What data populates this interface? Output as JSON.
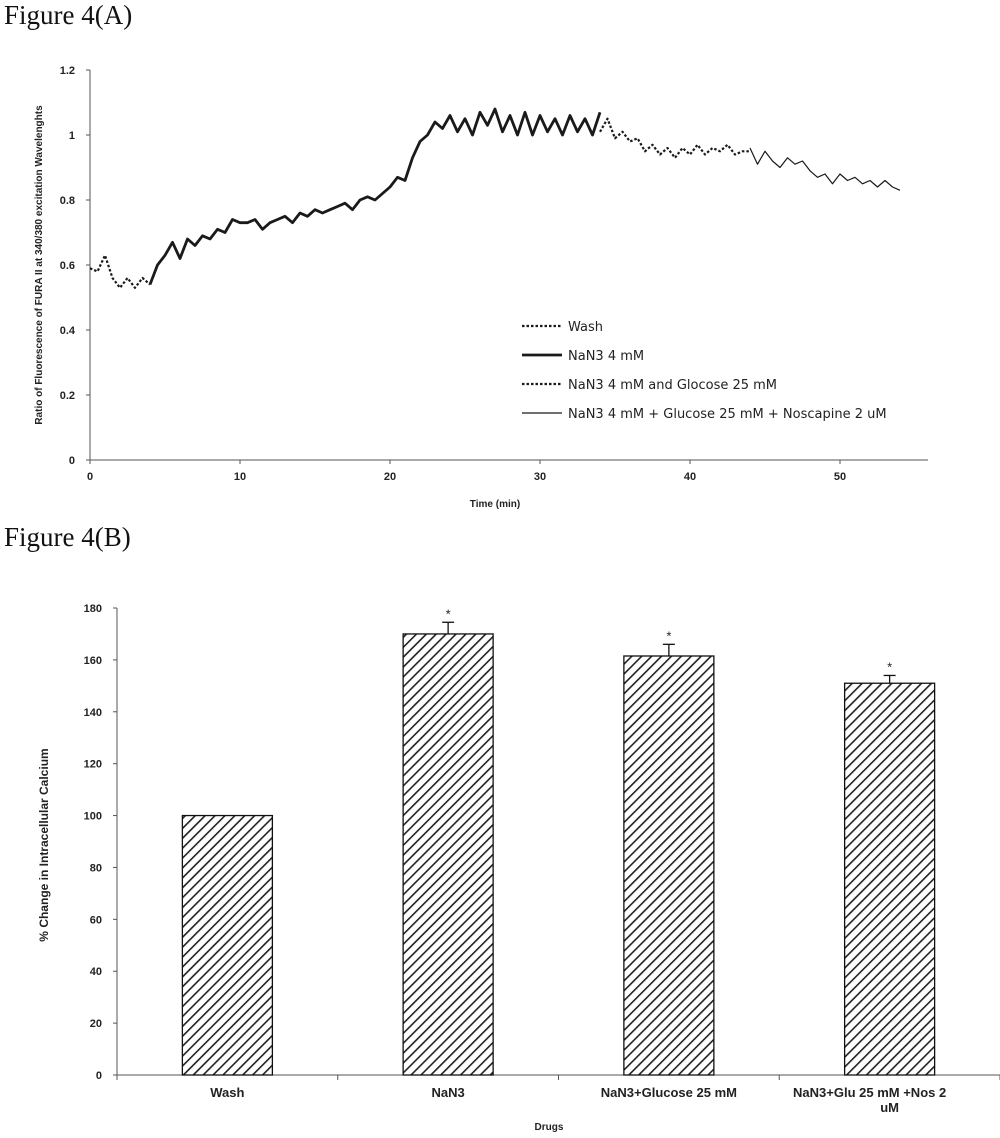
{
  "figures": {
    "a_label": "Figure 4(A)",
    "b_label": "Figure 4(B)"
  },
  "chart_data": [
    {
      "type": "line",
      "xlabel": "Time (min)",
      "ylabel": "Ratio of Fluorescence of FURA II at 340/380 excitation Wavelenghts",
      "xlim": [
        0,
        55
      ],
      "ylim": [
        0,
        1.2
      ],
      "xticks": [
        0,
        10,
        20,
        30,
        40,
        50
      ],
      "yticks": [
        0,
        0.2,
        0.4,
        0.6,
        0.8,
        1,
        1.2
      ],
      "legend_position": "lower-right",
      "grid": false,
      "series": [
        {
          "name": "Wash",
          "style": "dotted",
          "x": [
            0,
            0.5,
            1,
            1.5,
            2,
            2.5,
            3,
            3.5,
            4
          ],
          "y": [
            0.59,
            0.58,
            0.63,
            0.56,
            0.53,
            0.56,
            0.53,
            0.56,
            0.54
          ]
        },
        {
          "name": "NaN3 4 mM",
          "style": "thick",
          "x": [
            4,
            4.5,
            5,
            5.5,
            6,
            6.5,
            7,
            7.5,
            8,
            8.5,
            9,
            9.5,
            10,
            10.5,
            11,
            11.5,
            12,
            12.5,
            13,
            13.5,
            14,
            14.5,
            15,
            15.5,
            16,
            16.5,
            17,
            17.5,
            18,
            18.5,
            19,
            19.5,
            20,
            20.5,
            21,
            21.5,
            22,
            22.5,
            23,
            23.5,
            24,
            24.5,
            25,
            25.5,
            26,
            26.5,
            27,
            27.5,
            28,
            28.5,
            29,
            29.5,
            30,
            30.5,
            31,
            31.5,
            32,
            32.5,
            33,
            33.5,
            34
          ],
          "y": [
            0.54,
            0.6,
            0.63,
            0.67,
            0.62,
            0.68,
            0.66,
            0.69,
            0.68,
            0.71,
            0.7,
            0.74,
            0.73,
            0.73,
            0.74,
            0.71,
            0.73,
            0.74,
            0.75,
            0.73,
            0.76,
            0.75,
            0.77,
            0.76,
            0.77,
            0.78,
            0.79,
            0.77,
            0.8,
            0.81,
            0.8,
            0.82,
            0.84,
            0.87,
            0.86,
            0.93,
            0.98,
            1.0,
            1.04,
            1.02,
            1.06,
            1.01,
            1.05,
            1.0,
            1.07,
            1.03,
            1.08,
            1.01,
            1.06,
            1.0,
            1.07,
            1.0,
            1.06,
            1.01,
            1.05,
            1.0,
            1.06,
            1.01,
            1.05,
            1.0,
            1.07
          ]
        },
        {
          "name": "NaN3 4 mM and Glocose 25 mM",
          "style": "dotted",
          "x": [
            34,
            34.5,
            35,
            35.5,
            36,
            36.5,
            37,
            37.5,
            38,
            38.5,
            39,
            39.5,
            40,
            40.5,
            41,
            41.5,
            42,
            42.5,
            43,
            43.5,
            44
          ],
          "y": [
            1.01,
            1.05,
            0.99,
            1.01,
            0.98,
            0.99,
            0.95,
            0.97,
            0.94,
            0.96,
            0.93,
            0.96,
            0.94,
            0.97,
            0.94,
            0.96,
            0.95,
            0.97,
            0.94,
            0.95,
            0.95
          ]
        },
        {
          "name": "NaN3 4 mM + Glucose 25 mM +  Noscapine 2 uM",
          "style": "thin",
          "x": [
            44,
            44.5,
            45,
            45.5,
            46,
            46.5,
            47,
            47.5,
            48,
            48.5,
            49,
            49.5,
            50,
            50.5,
            51,
            51.5,
            52,
            52.5,
            53,
            53.5,
            54
          ],
          "y": [
            0.96,
            0.91,
            0.95,
            0.92,
            0.9,
            0.93,
            0.91,
            0.92,
            0.89,
            0.87,
            0.88,
            0.85,
            0.88,
            0.86,
            0.87,
            0.85,
            0.86,
            0.84,
            0.86,
            0.84,
            0.83
          ]
        }
      ]
    },
    {
      "type": "bar",
      "xlabel": "Drugs",
      "ylabel": "% Change in Intracellular Calcium",
      "ylim": [
        0,
        180
      ],
      "yticks": [
        0,
        20,
        40,
        60,
        80,
        100,
        120,
        140,
        160,
        180
      ],
      "grid": false,
      "fill": "diagonal-hatch",
      "categories": [
        "Wash",
        "NaN3",
        "NaN3+Glucose 25 mM",
        "NaN3+Glu 25 mM +Nos 2 uM"
      ],
      "values": [
        100,
        170,
        161.5,
        151
      ],
      "errors": [
        0,
        4.5,
        4.5,
        3
      ],
      "significance": [
        "",
        "*",
        "*",
        "*"
      ]
    }
  ]
}
